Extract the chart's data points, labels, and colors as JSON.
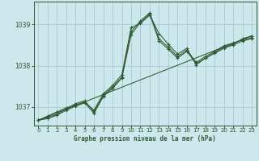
{
  "title": "Graphe pression niveau de la mer (hPa)",
  "bg_color": "#cce8ec",
  "grid_color": "#aacfd4",
  "line_color": "#2d5a2d",
  "xlim": [
    -0.5,
    23.5
  ],
  "ylim": [
    1036.55,
    1039.55
  ],
  "yticks": [
    1037,
    1038,
    1039
  ],
  "xticks": [
    0,
    1,
    2,
    3,
    4,
    5,
    6,
    7,
    8,
    9,
    10,
    11,
    12,
    13,
    14,
    15,
    16,
    17,
    18,
    19,
    20,
    21,
    22,
    23
  ],
  "series": [
    {
      "x": [
        0,
        1,
        2,
        3,
        4,
        5,
        6,
        7,
        8,
        9,
        10,
        11,
        12,
        13,
        14,
        15,
        16,
        17,
        18,
        19,
        20,
        21,
        22,
        23
      ],
      "y": [
        1036.68,
        1036.78,
        1036.88,
        1036.98,
        1037.05,
        1037.12,
        1036.92,
        1037.32,
        1037.52,
        1037.78,
        1038.92,
        1039.02,
        1039.22,
        1038.78,
        1038.52,
        1038.28,
        1038.42,
        1038.02,
        1038.18,
        1038.32,
        1038.45,
        1038.52,
        1038.65,
        1038.72
      ]
    },
    {
      "x": [
        0,
        1,
        2,
        3,
        4,
        5,
        6,
        7,
        8,
        9,
        10,
        11,
        12,
        13,
        14,
        15,
        16,
        17,
        18,
        19,
        20,
        21,
        22,
        23
      ],
      "y": [
        1036.68,
        1036.75,
        1036.82,
        1036.95,
        1037.08,
        1037.15,
        1036.88,
        1037.28,
        1037.48,
        1037.72,
        1038.82,
        1039.08,
        1039.28,
        1038.65,
        1038.45,
        1038.22,
        1038.38,
        1038.08,
        1038.22,
        1038.35,
        1038.48,
        1038.55,
        1038.62,
        1038.68
      ]
    },
    {
      "x": [
        0,
        1,
        2,
        3,
        4,
        5,
        6,
        7,
        8,
        9,
        10,
        11,
        12,
        13,
        14,
        15,
        16,
        17,
        18,
        19,
        20,
        21,
        22,
        23
      ],
      "y": [
        1036.68,
        1036.72,
        1036.8,
        1036.92,
        1037.02,
        1037.1,
        1036.85,
        1037.25,
        1037.45,
        1037.7,
        1038.75,
        1039.05,
        1039.25,
        1038.6,
        1038.4,
        1038.18,
        1038.35,
        1038.05,
        1038.18,
        1038.3,
        1038.42,
        1038.5,
        1038.6,
        1038.65
      ]
    },
    {
      "x": [
        0,
        23
      ],
      "y": [
        1036.68,
        1038.72
      ]
    }
  ]
}
